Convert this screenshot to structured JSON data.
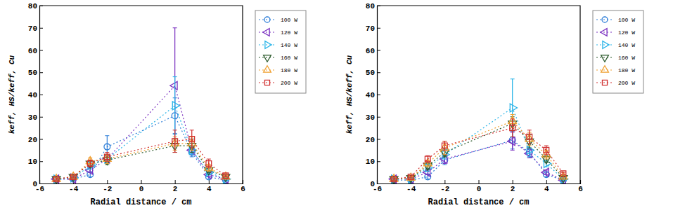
{
  "chart_data": [
    {
      "type": "line",
      "x_label": "Radial distance / cm",
      "y_label": "keff, HS/keff, Cu",
      "x": [
        -5,
        -4,
        -3,
        -2,
        2,
        3,
        4,
        5
      ],
      "xlim": [
        -6,
        6
      ],
      "xticks": [
        -6,
        -4,
        -2,
        0,
        2,
        4,
        6
      ],
      "ylim": [
        0,
        80
      ],
      "yticks": [
        0,
        10,
        20,
        30,
        40,
        50,
        60,
        70,
        80
      ],
      "grid": false,
      "legend": "right",
      "series": [
        {
          "name": "100 W",
          "color": "#2f7fd8",
          "marker": "circle",
          "line_style": "dotted",
          "values": [
            2,
            2,
            4,
            16.5,
            30.5,
            14,
            3,
            1.5
          ],
          "errors": [
            0.5,
            0.5,
            1,
            5,
            8,
            2,
            1,
            0.5
          ]
        },
        {
          "name": "120 W",
          "color": "#7a30c0",
          "marker": "triangle-left",
          "line_style": "dotted",
          "values": [
            2,
            2,
            6,
            11,
            44,
            15,
            4,
            2
          ],
          "errors": [
            0.5,
            0.5,
            1,
            2,
            26,
            2,
            1,
            0.5
          ]
        },
        {
          "name": "140 W",
          "color": "#2ab4e8",
          "marker": "triangle-right",
          "line_style": "dotted",
          "values": [
            2,
            2.5,
            8,
            11,
            35,
            15,
            5,
            2
          ],
          "errors": [
            0.5,
            0.5,
            1.5,
            2,
            13,
            2,
            1,
            0.5
          ]
        },
        {
          "name": "160 W",
          "color": "#2e5c2e",
          "marker": "triangle-down",
          "line_style": "dotted",
          "values": [
            2,
            3,
            9,
            10.5,
            17,
            17,
            6,
            3
          ],
          "errors": [
            0.5,
            0.5,
            1.5,
            2,
            3,
            3,
            1,
            0.5
          ]
        },
        {
          "name": "180 W",
          "color": "#f0a030",
          "marker": "triangle-up",
          "line_style": "dotted",
          "values": [
            2,
            3,
            10,
            11,
            18,
            18,
            7,
            3
          ],
          "errors": [
            0.5,
            0.5,
            1.5,
            2,
            3,
            3,
            1.5,
            0.5
          ]
        },
        {
          "name": "200 W",
          "color": "#d03030",
          "marker": "square",
          "line_style": "dotted",
          "values": [
            2,
            3,
            9,
            12,
            19,
            20,
            9,
            3.5
          ],
          "errors": [
            0.5,
            0.5,
            1.5,
            2,
            5,
            4,
            2,
            0.5
          ]
        }
      ]
    },
    {
      "type": "line",
      "x_label": "Radial distance / cm",
      "y_label": "keff, HS/keff, Cu",
      "x": [
        -5,
        -4,
        -3,
        -2,
        2,
        3,
        4,
        5
      ],
      "xlim": [
        -6,
        6
      ],
      "xticks": [
        -6,
        -4,
        -2,
        0,
        2,
        4,
        6
      ],
      "ylim": [
        0,
        80
      ],
      "yticks": [
        0,
        10,
        20,
        30,
        40,
        50,
        60,
        70,
        80
      ],
      "grid": false,
      "legend": "right",
      "series": [
        {
          "name": "100 W",
          "color": "#2f7fd8",
          "marker": "circle",
          "line_style": "dotted",
          "values": [
            1.5,
            1.5,
            3,
            10.5,
            19.5,
            14,
            4,
            1.5
          ],
          "errors": [
            0.5,
            0.5,
            1,
            2,
            4,
            2,
            1,
            0.5
          ]
        },
        {
          "name": "120 W",
          "color": "#7a30c0",
          "marker": "triangle-left",
          "line_style": "dotted",
          "values": [
            2,
            2,
            5,
            11,
            19,
            13.5,
            5,
            1.5
          ],
          "errors": [
            0.5,
            0.5,
            1,
            2,
            4,
            2,
            1,
            0.5
          ]
        },
        {
          "name": "140 W",
          "color": "#2ab4e8",
          "marker": "triangle-right",
          "line_style": "dotted",
          "values": [
            2,
            2,
            7,
            13,
            34,
            15,
            9,
            2
          ],
          "errors": [
            0.5,
            0.5,
            1.5,
            2,
            13,
            3,
            1.5,
            0.5
          ]
        },
        {
          "name": "160 W",
          "color": "#2e5c2e",
          "marker": "triangle-down",
          "line_style": "dotted",
          "values": [
            2,
            2.5,
            8,
            14,
            27,
            19,
            11,
            2.5
          ],
          "errors": [
            0.5,
            0.5,
            1.5,
            2,
            3,
            3,
            1.5,
            0.5
          ]
        },
        {
          "name": "180 W",
          "color": "#f0a030",
          "marker": "triangle-up",
          "line_style": "dotted",
          "values": [
            2,
            2.5,
            9,
            16,
            28,
            20,
            13,
            3
          ],
          "errors": [
            0.5,
            0.5,
            1.5,
            3,
            3,
            3,
            2,
            0.5
          ]
        },
        {
          "name": "200 W",
          "color": "#d03030",
          "marker": "square",
          "line_style": "dotted",
          "values": [
            2,
            3,
            11,
            17,
            25,
            21,
            15,
            4.5
          ],
          "errors": [
            0.5,
            0.5,
            1.5,
            2,
            4,
            3,
            2,
            0.5
          ]
        }
      ]
    }
  ]
}
